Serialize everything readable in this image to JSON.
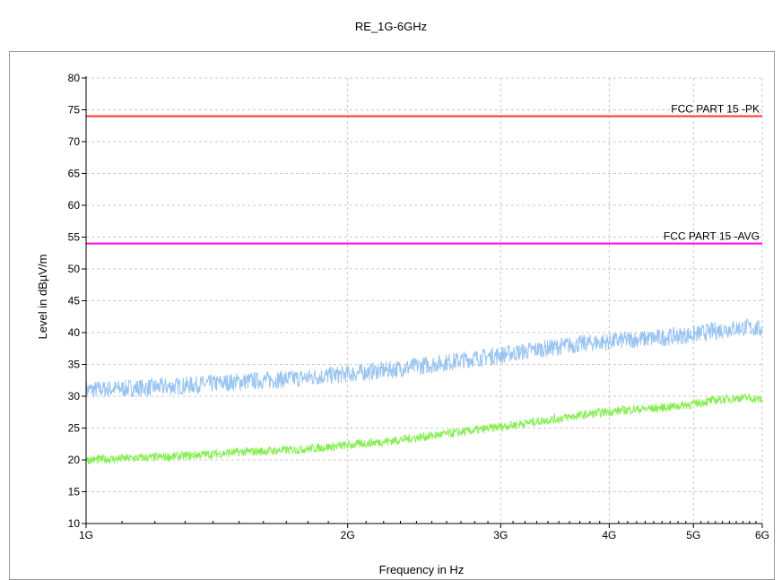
{
  "chart_data": {
    "type": "line",
    "title": "RE_1G-6GHz",
    "xlabel": "Frequency in Hz",
    "ylabel": "Level in dBµV/m",
    "x_scale": "log",
    "xlim": [
      1000000000,
      6000000000
    ],
    "ylim": [
      10,
      80
    ],
    "y_ticks": [
      10,
      15,
      20,
      25,
      30,
      35,
      40,
      45,
      50,
      55,
      60,
      65,
      70,
      75,
      80
    ],
    "x_ticks": [
      {
        "value": 1000000000,
        "label": "1G"
      },
      {
        "value": 2000000000,
        "label": "2G"
      },
      {
        "value": 3000000000,
        "label": "3G"
      },
      {
        "value": 4000000000,
        "label": "4G"
      },
      {
        "value": 5000000000,
        "label": "5G"
      },
      {
        "value": 6000000000,
        "label": "6G"
      }
    ],
    "grid": true,
    "limit_lines": [
      {
        "name": "FCC PART 15 -PK",
        "value": 74,
        "color": "#ff3333"
      },
      {
        "name": "FCC PART 15 -AVG",
        "value": 54,
        "color": "#ff00ff"
      }
    ],
    "series": [
      {
        "color": "#99c4f0",
        "x": [
          1000000000,
          1250000000,
          1500000000,
          1750000000,
          2000000000,
          2250000000,
          2500000000,
          2750000000,
          3000000000,
          3250000000,
          3500000000,
          3750000000,
          4000000000,
          4250000000,
          4500000000,
          4750000000,
          5000000000,
          5250000000,
          5500000000,
          5750000000,
          6000000000
        ],
        "values": [
          31,
          31.5,
          32.3,
          32.8,
          33.5,
          34.2,
          35,
          35.8,
          36.5,
          37.2,
          37.8,
          38.3,
          38.6,
          38.9,
          39.1,
          39.4,
          39.7,
          40.2,
          40.6,
          40.8,
          40.5
        ]
      },
      {
        "color": "#88ee55",
        "x": [
          1000000000,
          1250000000,
          1500000000,
          1750000000,
          2000000000,
          2250000000,
          2500000000,
          2750000000,
          3000000000,
          3250000000,
          3500000000,
          3750000000,
          4000000000,
          4250000000,
          4500000000,
          4750000000,
          5000000000,
          5250000000,
          5500000000,
          5750000000,
          6000000000
        ],
        "values": [
          20,
          20.5,
          21.2,
          21.6,
          22.3,
          23,
          23.8,
          24.5,
          25.2,
          25.9,
          26.5,
          27.1,
          27.6,
          27.9,
          28.1,
          28.4,
          28.8,
          29.3,
          29.6,
          29.8,
          29.4
        ]
      }
    ]
  }
}
